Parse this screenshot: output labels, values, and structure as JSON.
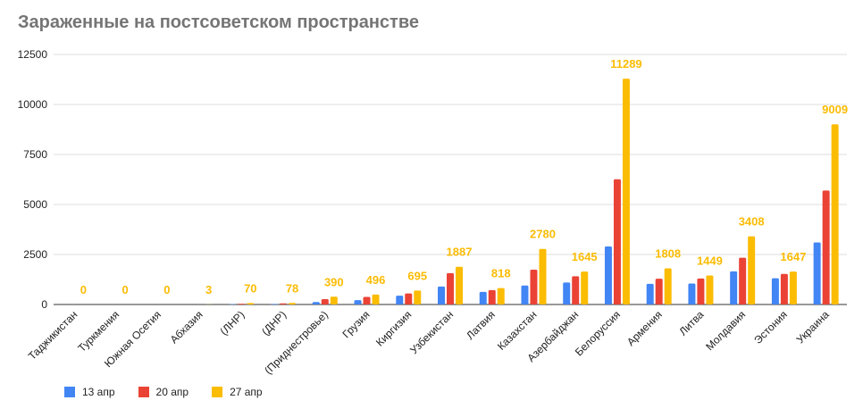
{
  "title": "Зараженные на постсоветском пространстве",
  "chart_data": {
    "type": "bar",
    "title": "Зараженные на постсоветском пространстве",
    "categories": [
      "Таджикистан",
      "Туркмения",
      "Южная Осетия",
      "Абхазия",
      "(ЛНР)",
      "(ДНР)",
      "(Приднестровье)",
      "Грузия",
      "Киргизия",
      "Узбекистан",
      "Латвия",
      "Казахстан",
      "Азербайджан",
      "Белоруссия",
      "Армения",
      "Литва",
      "Молдавия",
      "Эстония",
      "Украина"
    ],
    "series": [
      {
        "name": "13 апр",
        "color": "#4285f4",
        "values": [
          0,
          0,
          0,
          0,
          16,
          30,
          120,
          220,
          440,
          900,
          630,
          950,
          1100,
          2900,
          1030,
          1050,
          1660,
          1310,
          3100
        ]
      },
      {
        "name": "20 апр",
        "color": "#ea4335",
        "values": [
          0,
          0,
          0,
          2,
          40,
          55,
          270,
          380,
          550,
          1570,
          720,
          1740,
          1410,
          6260,
          1290,
          1300,
          2340,
          1530,
          5700
        ]
      },
      {
        "name": "27 апр",
        "color": "#fbbc04",
        "values": [
          0,
          0,
          0,
          3,
          70,
          78,
          390,
          496,
          695,
          1887,
          818,
          2780,
          1645,
          11289,
          1808,
          1449,
          3408,
          1647,
          9009
        ]
      }
    ],
    "data_labels_series": "27 апр",
    "ylim": [
      0,
      12500
    ],
    "yticks": [
      0,
      2500,
      5000,
      7500,
      10000,
      12500
    ],
    "grid": true,
    "legend": "bottom-left"
  }
}
